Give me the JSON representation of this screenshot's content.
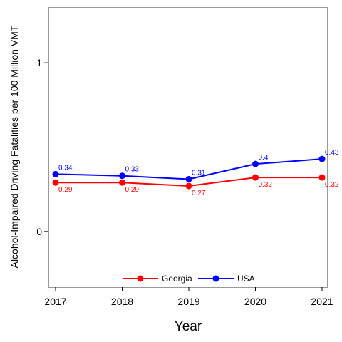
{
  "chart_data": {
    "type": "line",
    "title": "",
    "xlabel": "Year",
    "ylabel": "Alcohol-Impaired Driving Fatalities per 100 Million VMT",
    "x": [
      2017,
      2018,
      2019,
      2020,
      2021
    ],
    "xlim": [
      2017,
      2021
    ],
    "ylim": [
      -0.33,
      1.33
    ],
    "yticks_labeled": [
      0,
      1
    ],
    "yticks_minor": [
      0.5
    ],
    "grid": false,
    "legend_position": "bottom-center",
    "series": [
      {
        "name": "Georgia",
        "color": "#ff0000",
        "values": [
          0.29,
          0.29,
          0.27,
          0.32,
          0.32
        ],
        "labels": [
          "0.29",
          "0.29",
          "0.27",
          "0.32",
          "0.32"
        ],
        "label_position": "below"
      },
      {
        "name": "USA",
        "color": "#0000ff",
        "values": [
          0.34,
          0.33,
          0.31,
          0.4,
          0.43
        ],
        "labels": [
          "0.34",
          "0.33",
          "0.31",
          "0.4",
          "0.43"
        ],
        "label_position": "above"
      }
    ]
  }
}
